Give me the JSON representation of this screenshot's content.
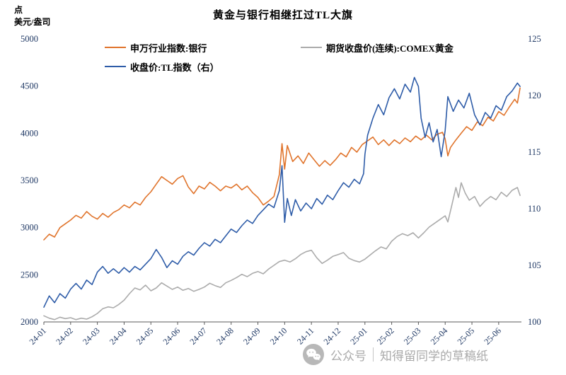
{
  "title": "黄金与银行相继扛过TL大旗",
  "y_axis_unit": {
    "line1": "点",
    "line2": "美元/盎司"
  },
  "watermark": {
    "icon": "wechat-icon",
    "platform_label": "公众号",
    "account_name": "知得留同学的草稿纸"
  },
  "chart_data": {
    "type": "line",
    "title": "黄金与银行相继扛过TL大旗",
    "gridlines": false,
    "legend_position": "top",
    "colors": {
      "axis_text": "#1F3864",
      "axis_line": "#595959",
      "bank_line": "#E0742C",
      "tl_line": "#2E5CA8",
      "gold_line": "#ABABAB"
    },
    "x_axis": {
      "tick_labels": [
        "24-01",
        "24-02",
        "24-03",
        "24-04",
        "24-05",
        "24-06",
        "24-07",
        "24-08",
        "24-09",
        "24-10",
        "24-11",
        "24-12",
        "25-01",
        "25-02",
        "25-03",
        "25-04",
        "25-05",
        "25-06"
      ],
      "data_range_months": [
        0,
        17.85
      ]
    },
    "left_axis": {
      "unit": "点 / 美元/盎司",
      "ticks": [
        2000,
        2500,
        3000,
        3500,
        4000,
        4500,
        5000
      ],
      "range": [
        2000,
        5000
      ]
    },
    "right_axis": {
      "ticks": [
        100,
        105,
        110,
        115,
        120,
        125
      ],
      "range": [
        100,
        125
      ]
    },
    "series": [
      {
        "id": "bank",
        "name": "申万行业指数:银行",
        "axis": "left",
        "color": "#E0742C",
        "points": [
          [
            0,
            2870
          ],
          [
            0.2,
            2930
          ],
          [
            0.4,
            2900
          ],
          [
            0.6,
            3000
          ],
          [
            0.8,
            3040
          ],
          [
            1,
            3080
          ],
          [
            1.2,
            3130
          ],
          [
            1.4,
            3100
          ],
          [
            1.6,
            3170
          ],
          [
            1.8,
            3120
          ],
          [
            2,
            3090
          ],
          [
            2.2,
            3150
          ],
          [
            2.4,
            3110
          ],
          [
            2.6,
            3160
          ],
          [
            2.8,
            3190
          ],
          [
            3,
            3240
          ],
          [
            3.2,
            3210
          ],
          [
            3.4,
            3270
          ],
          [
            3.6,
            3240
          ],
          [
            3.8,
            3320
          ],
          [
            4,
            3380
          ],
          [
            4.2,
            3460
          ],
          [
            4.4,
            3540
          ],
          [
            4.6,
            3500
          ],
          [
            4.8,
            3460
          ],
          [
            5,
            3520
          ],
          [
            5.2,
            3550
          ],
          [
            5.4,
            3430
          ],
          [
            5.6,
            3360
          ],
          [
            5.8,
            3440
          ],
          [
            6,
            3410
          ],
          [
            6.2,
            3480
          ],
          [
            6.4,
            3440
          ],
          [
            6.6,
            3390
          ],
          [
            6.8,
            3440
          ],
          [
            7,
            3420
          ],
          [
            7.2,
            3460
          ],
          [
            7.4,
            3400
          ],
          [
            7.6,
            3440
          ],
          [
            7.8,
            3370
          ],
          [
            8,
            3320
          ],
          [
            8.2,
            3240
          ],
          [
            8.4,
            3280
          ],
          [
            8.6,
            3330
          ],
          [
            8.8,
            3560
          ],
          [
            8.9,
            3890
          ],
          [
            9,
            3620
          ],
          [
            9.1,
            3870
          ],
          [
            9.3,
            3700
          ],
          [
            9.5,
            3760
          ],
          [
            9.7,
            3680
          ],
          [
            9.9,
            3790
          ],
          [
            10.1,
            3720
          ],
          [
            10.3,
            3650
          ],
          [
            10.5,
            3710
          ],
          [
            10.7,
            3660
          ],
          [
            10.9,
            3720
          ],
          [
            11.1,
            3790
          ],
          [
            11.3,
            3750
          ],
          [
            11.5,
            3850
          ],
          [
            11.7,
            3800
          ],
          [
            11.9,
            3880
          ],
          [
            12.1,
            3920
          ],
          [
            12.3,
            3960
          ],
          [
            12.5,
            3880
          ],
          [
            12.7,
            3930
          ],
          [
            12.9,
            3870
          ],
          [
            13.1,
            3930
          ],
          [
            13.3,
            3890
          ],
          [
            13.5,
            3950
          ],
          [
            13.7,
            3910
          ],
          [
            13.9,
            3970
          ],
          [
            14.1,
            3930
          ],
          [
            14.3,
            3980
          ],
          [
            14.5,
            3930
          ],
          [
            14.7,
            3990
          ],
          [
            14.9,
            4010
          ],
          [
            15,
            3940
          ],
          [
            15.1,
            3760
          ],
          [
            15.2,
            3850
          ],
          [
            15.4,
            3930
          ],
          [
            15.6,
            4000
          ],
          [
            15.8,
            4070
          ],
          [
            16,
            4030
          ],
          [
            16.2,
            4120
          ],
          [
            16.4,
            4080
          ],
          [
            16.6,
            4170
          ],
          [
            16.8,
            4130
          ],
          [
            17,
            4230
          ],
          [
            17.2,
            4190
          ],
          [
            17.4,
            4280
          ],
          [
            17.6,
            4360
          ],
          [
            17.7,
            4320
          ],
          [
            17.8,
            4480
          ]
        ]
      },
      {
        "id": "tl-index",
        "name": "收盘价:TL指数（右）",
        "axis": "right",
        "color": "#2E5CA8",
        "points": [
          [
            0,
            101.3
          ],
          [
            0.2,
            102.3
          ],
          [
            0.4,
            101.7
          ],
          [
            0.6,
            102.5
          ],
          [
            0.8,
            102.1
          ],
          [
            1,
            102.9
          ],
          [
            1.2,
            103.4
          ],
          [
            1.4,
            102.9
          ],
          [
            1.6,
            103.7
          ],
          [
            1.8,
            103.3
          ],
          [
            2,
            104.4
          ],
          [
            2.2,
            104.9
          ],
          [
            2.4,
            104.3
          ],
          [
            2.6,
            104.7
          ],
          [
            2.8,
            104.3
          ],
          [
            3,
            104.8
          ],
          [
            3.2,
            104.4
          ],
          [
            3.4,
            104.9
          ],
          [
            3.6,
            104.6
          ],
          [
            3.8,
            105.1
          ],
          [
            4,
            105.6
          ],
          [
            4.2,
            106.4
          ],
          [
            4.4,
            105.7
          ],
          [
            4.6,
            104.8
          ],
          [
            4.8,
            105.4
          ],
          [
            5,
            105.1
          ],
          [
            5.2,
            105.8
          ],
          [
            5.4,
            106.2
          ],
          [
            5.6,
            105.9
          ],
          [
            5.8,
            106.5
          ],
          [
            6,
            107
          ],
          [
            6.2,
            106.7
          ],
          [
            6.4,
            107.3
          ],
          [
            6.6,
            107
          ],
          [
            6.8,
            107.6
          ],
          [
            7,
            108.2
          ],
          [
            7.2,
            107.9
          ],
          [
            7.4,
            108.5
          ],
          [
            7.6,
            109
          ],
          [
            7.8,
            108.7
          ],
          [
            8,
            109.4
          ],
          [
            8.2,
            109.9
          ],
          [
            8.4,
            110.4
          ],
          [
            8.6,
            110.1
          ],
          [
            8.8,
            111.6
          ],
          [
            8.9,
            113.8
          ],
          [
            9,
            108.8
          ],
          [
            9.1,
            110.9
          ],
          [
            9.25,
            109.4
          ],
          [
            9.4,
            110.8
          ],
          [
            9.6,
            109.8
          ],
          [
            9.8,
            110.5
          ],
          [
            10,
            110
          ],
          [
            10.2,
            110.9
          ],
          [
            10.4,
            110.4
          ],
          [
            10.6,
            111.2
          ],
          [
            10.8,
            110.8
          ],
          [
            11,
            111.6
          ],
          [
            11.2,
            112.3
          ],
          [
            11.4,
            111.9
          ],
          [
            11.6,
            112.6
          ],
          [
            11.8,
            112.2
          ],
          [
            11.95,
            113.1
          ],
          [
            12,
            114.8
          ],
          [
            12.1,
            116.5
          ],
          [
            12.3,
            118
          ],
          [
            12.5,
            119.2
          ],
          [
            12.7,
            118.3
          ],
          [
            12.9,
            119.8
          ],
          [
            13.1,
            120.6
          ],
          [
            13.3,
            119.7
          ],
          [
            13.5,
            121
          ],
          [
            13.7,
            120.3
          ],
          [
            13.85,
            121.6
          ],
          [
            14,
            120.8
          ],
          [
            14.1,
            118
          ],
          [
            14.25,
            116.3
          ],
          [
            14.4,
            117.6
          ],
          [
            14.55,
            115.9
          ],
          [
            14.7,
            117
          ],
          [
            14.85,
            114.6
          ],
          [
            15,
            116.9
          ],
          [
            15.1,
            119.9
          ],
          [
            15.3,
            118.6
          ],
          [
            15.5,
            119.6
          ],
          [
            15.7,
            118.9
          ],
          [
            15.9,
            120.2
          ],
          [
            16.1,
            118.3
          ],
          [
            16.3,
            117.4
          ],
          [
            16.5,
            118.5
          ],
          [
            16.7,
            118
          ],
          [
            16.9,
            119.1
          ],
          [
            17.1,
            118.7
          ],
          [
            17.3,
            119.9
          ],
          [
            17.5,
            120.4
          ],
          [
            17.7,
            121.1
          ],
          [
            17.8,
            120.8
          ]
        ]
      },
      {
        "id": "comex-gold",
        "name": "期货收盘价(连续):COMEX黄金",
        "axis": "left",
        "color": "#ABABAB",
        "points": [
          [
            0,
            2065
          ],
          [
            0.2,
            2040
          ],
          [
            0.4,
            2025
          ],
          [
            0.6,
            2050
          ],
          [
            0.8,
            2035
          ],
          [
            1,
            2045
          ],
          [
            1.2,
            2025
          ],
          [
            1.4,
            2040
          ],
          [
            1.6,
            2030
          ],
          [
            1.8,
            2055
          ],
          [
            2,
            2090
          ],
          [
            2.2,
            2140
          ],
          [
            2.4,
            2160
          ],
          [
            2.6,
            2150
          ],
          [
            2.8,
            2185
          ],
          [
            3,
            2230
          ],
          [
            3.2,
            2300
          ],
          [
            3.4,
            2360
          ],
          [
            3.6,
            2340
          ],
          [
            3.8,
            2390
          ],
          [
            4,
            2330
          ],
          [
            4.2,
            2360
          ],
          [
            4.4,
            2415
          ],
          [
            4.6,
            2380
          ],
          [
            4.8,
            2345
          ],
          [
            5,
            2370
          ],
          [
            5.2,
            2335
          ],
          [
            5.4,
            2355
          ],
          [
            5.6,
            2325
          ],
          [
            5.8,
            2345
          ],
          [
            6,
            2370
          ],
          [
            6.2,
            2410
          ],
          [
            6.4,
            2385
          ],
          [
            6.6,
            2365
          ],
          [
            6.8,
            2415
          ],
          [
            7,
            2440
          ],
          [
            7.2,
            2470
          ],
          [
            7.4,
            2505
          ],
          [
            7.6,
            2480
          ],
          [
            7.8,
            2515
          ],
          [
            8,
            2535
          ],
          [
            8.2,
            2510
          ],
          [
            8.4,
            2560
          ],
          [
            8.6,
            2600
          ],
          [
            8.8,
            2640
          ],
          [
            9,
            2655
          ],
          [
            9.2,
            2635
          ],
          [
            9.4,
            2670
          ],
          [
            9.6,
            2715
          ],
          [
            9.8,
            2745
          ],
          [
            10,
            2760
          ],
          [
            10.2,
            2680
          ],
          [
            10.4,
            2620
          ],
          [
            10.6,
            2655
          ],
          [
            10.8,
            2695
          ],
          [
            11,
            2715
          ],
          [
            11.2,
            2735
          ],
          [
            11.4,
            2675
          ],
          [
            11.6,
            2650
          ],
          [
            11.8,
            2635
          ],
          [
            12,
            2665
          ],
          [
            12.2,
            2710
          ],
          [
            12.4,
            2755
          ],
          [
            12.6,
            2795
          ],
          [
            12.8,
            2775
          ],
          [
            13,
            2855
          ],
          [
            13.2,
            2905
          ],
          [
            13.4,
            2935
          ],
          [
            13.6,
            2915
          ],
          [
            13.8,
            2945
          ],
          [
            14,
            2890
          ],
          [
            14.2,
            2945
          ],
          [
            14.4,
            3005
          ],
          [
            14.6,
            3045
          ],
          [
            14.8,
            3085
          ],
          [
            15,
            3125
          ],
          [
            15.1,
            3060
          ],
          [
            15.25,
            3240
          ],
          [
            15.4,
            3425
          ],
          [
            15.5,
            3320
          ],
          [
            15.6,
            3475
          ],
          [
            15.75,
            3365
          ],
          [
            15.9,
            3290
          ],
          [
            16.1,
            3330
          ],
          [
            16.3,
            3225
          ],
          [
            16.5,
            3285
          ],
          [
            16.7,
            3330
          ],
          [
            16.9,
            3295
          ],
          [
            17.1,
            3375
          ],
          [
            17.3,
            3330
          ],
          [
            17.5,
            3395
          ],
          [
            17.7,
            3425
          ],
          [
            17.8,
            3340
          ]
        ]
      }
    ]
  }
}
